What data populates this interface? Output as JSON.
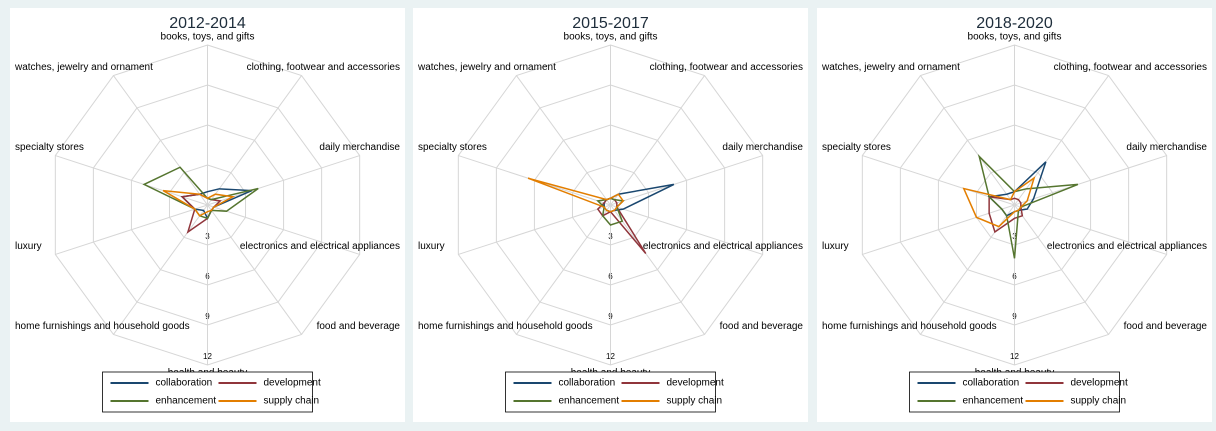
{
  "chart_data": [
    {
      "type": "radar",
      "title": "2012-2014",
      "categories": [
        "books, toys, and gifts",
        "clothing, footwear and accessories",
        "daily merchandise",
        "electronics and electrical appliances",
        "food and beverage",
        "health and beauty",
        "home furnishings and household goods",
        "luxury",
        "specialty stores",
        "watches, jewelry and ornament"
      ],
      "rlim": [
        0,
        12
      ],
      "rticks": [
        3,
        6,
        9,
        12
      ],
      "series": [
        {
          "name": "collaboration",
          "color": "#1a476f",
          "values": [
            1,
            1.5,
            3.5,
            0.5,
            0.5,
            1,
            0.5,
            1,
            2,
            1
          ]
        },
        {
          "name": "development",
          "color": "#90353b",
          "values": [
            0.5,
            0.5,
            1,
            0.5,
            0.5,
            1,
            2.5,
            1,
            2,
            1
          ]
        },
        {
          "name": "enhancement",
          "color": "#55752f",
          "values": [
            0.5,
            0.5,
            4,
            1.5,
            0.5,
            1,
            1,
            1,
            5,
            3.5
          ]
        },
        {
          "name": "supply chain",
          "color": "#e37e00",
          "values": [
            0.5,
            1,
            2,
            0.5,
            0.5,
            0.5,
            1,
            1,
            3.5,
            1
          ]
        }
      ]
    },
    {
      "type": "radar",
      "title": "2015-2017",
      "categories": [
        "books, toys, and gifts",
        "clothing, footwear and accessories",
        "daily merchandise",
        "electronics and electrical appliances",
        "food and beverage",
        "health and beauty",
        "home furnishings and household goods",
        "luxury",
        "specialty stores",
        "watches, jewelry and ornament"
      ],
      "rlim": [
        0,
        12
      ],
      "rticks": [
        3,
        6,
        9,
        12
      ],
      "series": [
        {
          "name": "collaboration",
          "color": "#1a476f",
          "values": [
            0.5,
            1,
            5,
            1,
            0.5,
            0.5,
            0.5,
            0.5,
            0.5,
            0.5
          ]
        },
        {
          "name": "development",
          "color": "#90353b",
          "values": [
            0.5,
            0.5,
            0.5,
            0.5,
            4.5,
            0.5,
            1,
            1,
            0.5,
            0.5
          ]
        },
        {
          "name": "enhancement",
          "color": "#55752f",
          "values": [
            0.5,
            0.5,
            1,
            0.5,
            1.5,
            1.5,
            1,
            0.5,
            1,
            0.5
          ]
        },
        {
          "name": "supply chain",
          "color": "#e37e00",
          "values": [
            0.5,
            1,
            1,
            0.5,
            0.5,
            0.5,
            0.5,
            0.5,
            6.5,
            0.5
          ]
        }
      ]
    },
    {
      "type": "radar",
      "title": "2018-2020",
      "categories": [
        "books, toys, and gifts",
        "clothing, footwear and accessories",
        "daily merchandise",
        "electronics and electrical appliances",
        "food and beverage",
        "health and beauty",
        "home furnishings and household goods",
        "luxury",
        "specialty stores",
        "watches, jewelry and ornament"
      ],
      "rlim": [
        0,
        12
      ],
      "rticks": [
        3,
        6,
        9,
        12
      ],
      "series": [
        {
          "name": "collaboration",
          "color": "#1a476f",
          "values": [
            1,
            4,
            1.5,
            1,
            0.5,
            0.5,
            1,
            1,
            2,
            1
          ]
        },
        {
          "name": "development",
          "color": "#90353b",
          "values": [
            0.5,
            0.5,
            0.5,
            0.5,
            1,
            1,
            2.5,
            2,
            2,
            0.5
          ]
        },
        {
          "name": "enhancement",
          "color": "#55752f",
          "values": [
            1,
            1.5,
            5,
            0.5,
            0.5,
            4,
            1,
            1,
            2,
            4.5
          ]
        },
        {
          "name": "supply chain",
          "color": "#e37e00",
          "values": [
            1,
            2.5,
            1,
            0.5,
            0.5,
            0.5,
            2,
            3,
            4,
            0.5
          ]
        }
      ]
    }
  ]
}
